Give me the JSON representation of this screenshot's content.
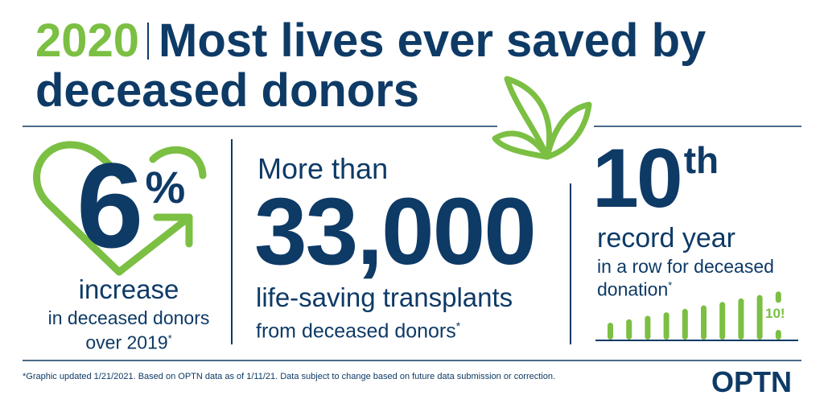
{
  "header": {
    "year": "2020",
    "title_line1": "Most lives ever saved by",
    "title_line2": "deceased donors"
  },
  "stat_increase": {
    "value": "6",
    "unit": "%",
    "label": "increase",
    "sub1": "in deceased donors",
    "sub2": "over 2019",
    "asterisk": "*"
  },
  "stat_transplants": {
    "prefix": "More than",
    "value": "33,000",
    "label": "life-saving transplants",
    "sub": "from deceased donors",
    "asterisk": "*"
  },
  "stat_record": {
    "value": "10",
    "suffix": "th",
    "label": "record year",
    "sub1": "in a row for deceased",
    "sub2": "donation",
    "asterisk": "*",
    "bar_badge": "10!",
    "bar_count": 10
  },
  "footer": {
    "note": "*Graphic updated 1/21/2021. Based on OPTN data as of 1/11/21. Data subject to change based on future data submission or correction.",
    "logo": "OPTN"
  },
  "colors": {
    "navy": "#0e3a66",
    "green": "#7bbf43"
  }
}
